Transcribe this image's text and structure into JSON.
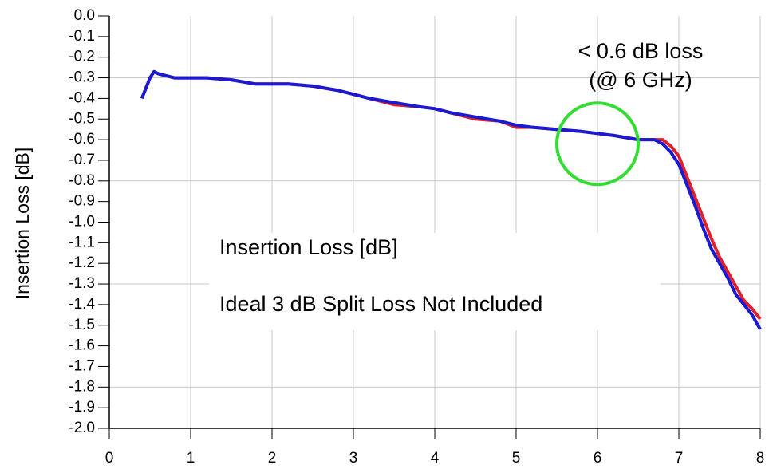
{
  "chart_data": {
    "type": "line",
    "y_label": "Insertion Loss [dB]",
    "annotations": [
      "< 0.6 dB loss",
      "(@ 6 GHz)",
      "Insertion Loss [dB]",
      "Ideal 3 dB Split Loss Not Included"
    ],
    "x": [
      0.4,
      0.45,
      0.5,
      0.55,
      0.6,
      0.8,
      1.0,
      1.2,
      1.5,
      1.8,
      2.0,
      2.2,
      2.5,
      2.8,
      3.0,
      3.2,
      3.5,
      3.8,
      4.0,
      4.2,
      4.5,
      4.8,
      5.0,
      5.2,
      5.5,
      5.8,
      6.0,
      6.2,
      6.5,
      6.6,
      6.7,
      6.8,
      6.9,
      7.0,
      7.1,
      7.2,
      7.3,
      7.4,
      7.5,
      7.6,
      7.7,
      7.8,
      7.9,
      8.0
    ],
    "series": [
      {
        "color": "#e0202a",
        "values": [
          -0.4,
          -0.35,
          -0.3,
          -0.27,
          -0.28,
          -0.3,
          -0.3,
          -0.3,
          -0.31,
          -0.33,
          -0.33,
          -0.33,
          -0.34,
          -0.36,
          -0.38,
          -0.4,
          -0.43,
          -0.44,
          -0.45,
          -0.47,
          -0.5,
          -0.51,
          -0.54,
          -0.54,
          -0.55,
          -0.56,
          -0.57,
          -0.58,
          -0.6,
          -0.6,
          -0.6,
          -0.6,
          -0.63,
          -0.68,
          -0.78,
          -0.88,
          -0.98,
          -1.08,
          -1.17,
          -1.24,
          -1.31,
          -1.38,
          -1.42,
          -1.47
        ]
      },
      {
        "color": "#1a1ad0",
        "values": [
          -0.4,
          -0.35,
          -0.3,
          -0.27,
          -0.28,
          -0.3,
          -0.3,
          -0.3,
          -0.31,
          -0.33,
          -0.33,
          -0.33,
          -0.34,
          -0.36,
          -0.38,
          -0.4,
          -0.42,
          -0.44,
          -0.45,
          -0.47,
          -0.49,
          -0.51,
          -0.53,
          -0.54,
          -0.55,
          -0.56,
          -0.57,
          -0.58,
          -0.6,
          -0.6,
          -0.6,
          -0.62,
          -0.66,
          -0.72,
          -0.82,
          -0.92,
          -1.03,
          -1.13,
          -1.2,
          -1.27,
          -1.35,
          -1.4,
          -1.45,
          -1.52
        ]
      }
    ],
    "xlim": [
      0,
      8
    ],
    "xticks": [
      0,
      1,
      2,
      3,
      4,
      5,
      6,
      7,
      8
    ],
    "ylim": [
      -2,
      0
    ],
    "yticks": [
      {
        "value": 0,
        "label": "0.0"
      },
      -0.1,
      -0.2,
      -0.3,
      -0.4,
      -0.5,
      -0.6,
      -0.7,
      -0.8,
      -0.9,
      {
        "value": -1,
        "label": "-1.0"
      },
      -1.1,
      -1.2,
      -1.3,
      -1.4,
      -1.5,
      -1.6,
      -1.7,
      -1.8,
      -1.9,
      {
        "value": -2,
        "label": "-2.0"
      }
    ],
    "ygridlines": [
      -0.3,
      -0.8,
      -1.3,
      -1.8
    ],
    "grid": true
  }
}
